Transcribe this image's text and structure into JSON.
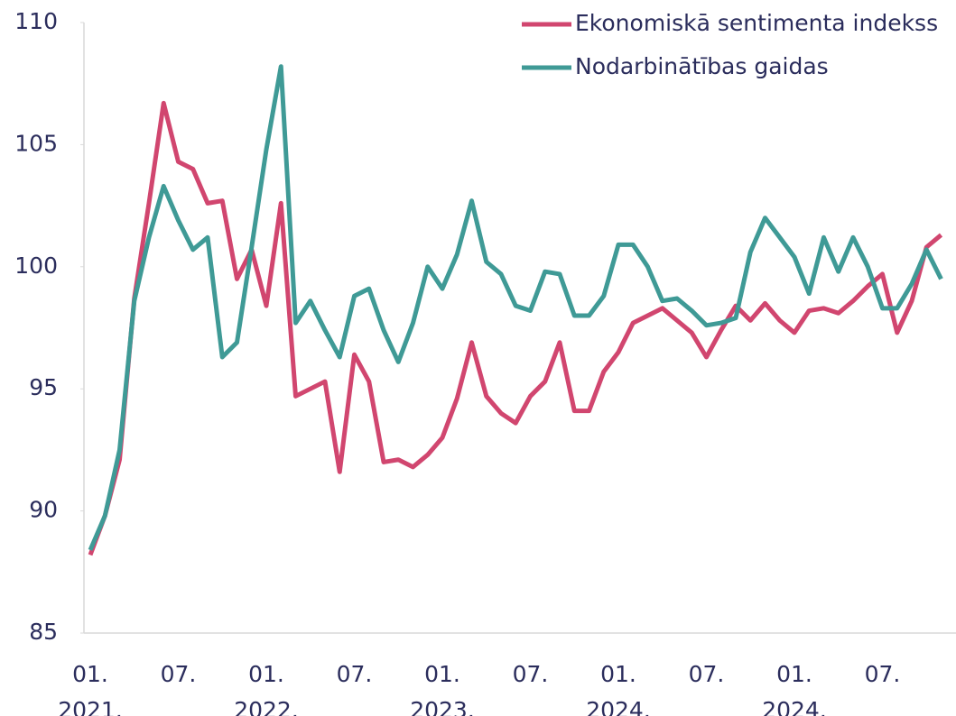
{
  "chart_data": {
    "type": "line",
    "categories": [
      "01.\n2021.",
      null,
      null,
      null,
      null,
      null,
      "07.",
      null,
      null,
      null,
      null,
      null,
      "01.\n2022.",
      null,
      null,
      null,
      null,
      null,
      "07.",
      null,
      null,
      null,
      null,
      null,
      "01.\n2023.",
      null,
      null,
      null,
      null,
      null,
      "07.",
      null,
      null,
      null,
      null,
      null,
      "01.\n2024.",
      null,
      null,
      null,
      null,
      null,
      "07.",
      null,
      null,
      null,
      null,
      null,
      "01.\n2024.",
      null,
      null,
      null,
      null,
      null,
      "07.",
      null,
      null,
      null,
      null
    ],
    "series": [
      {
        "name": "Ekonomiskā sentimenta indekss",
        "color": "#d1466f",
        "values": [
          88.2,
          89.8,
          92.1,
          98.7,
          102.6,
          106.7,
          104.3,
          104.0,
          102.6,
          102.7,
          99.5,
          100.7,
          98.4,
          102.6,
          94.7,
          95.0,
          95.3,
          91.6,
          96.4,
          95.3,
          92.0,
          92.1,
          91.8,
          92.3,
          93.0,
          94.6,
          96.9,
          94.7,
          94.0,
          93.6,
          94.7,
          95.3,
          96.9,
          94.1,
          94.1,
          95.7,
          96.5,
          97.7,
          98.0,
          98.3,
          97.8,
          97.3,
          96.3,
          97.4,
          98.4,
          97.8,
          98.5,
          97.8,
          97.3,
          98.2,
          98.3,
          98.1,
          98.6,
          99.2,
          99.7,
          97.3,
          98.6,
          100.8,
          101.3
        ]
      },
      {
        "name": "Nodarbinātības gaidas",
        "color": "#3f9a96",
        "values": [
          88.4,
          89.8,
          92.5,
          98.6,
          101.2,
          103.3,
          101.9,
          100.7,
          101.2,
          96.3,
          96.9,
          100.8,
          104.8,
          108.2,
          97.7,
          98.6,
          97.4,
          96.3,
          98.8,
          99.1,
          97.4,
          96.1,
          97.7,
          100.0,
          99.1,
          100.5,
          102.7,
          100.2,
          99.7,
          98.4,
          98.2,
          99.8,
          99.7,
          98.0,
          98.0,
          98.8,
          100.9,
          100.9,
          100.0,
          98.6,
          98.7,
          98.2,
          97.6,
          97.7,
          97.9,
          100.6,
          102.0,
          101.2,
          100.4,
          98.9,
          101.2,
          99.8,
          101.2,
          100.0,
          98.3,
          98.3,
          99.3,
          100.7,
          99.5
        ]
      }
    ],
    "ylim": [
      85,
      110
    ],
    "yticks": [
      85,
      90,
      95,
      100,
      105,
      110
    ],
    "grid": false
  }
}
